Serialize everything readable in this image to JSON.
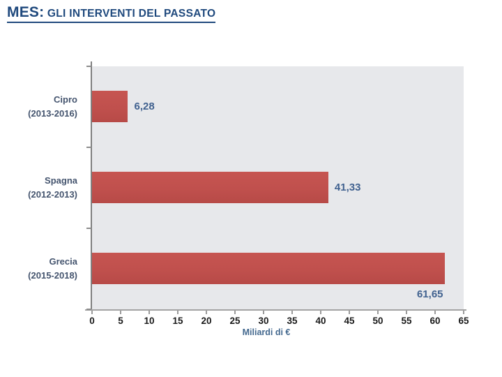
{
  "page": {
    "title_prefix": "MES:",
    "title_rest": " GLI INTERVENTI DEL PASSATO"
  },
  "chart_data": {
    "type": "bar",
    "orientation": "horizontal",
    "categories": [
      "Cipro",
      "Spagna",
      "Grecia"
    ],
    "category_periods": [
      "(2013-2016)",
      "(2012-2013)",
      "(2015-2018)"
    ],
    "values": [
      6.28,
      41.33,
      61.65
    ],
    "value_labels": [
      "6,28",
      "41,33",
      "61,65"
    ],
    "value_label_positions": [
      "right",
      "right",
      "below-end"
    ],
    "title": "",
    "xlabel": "Miliardi di €",
    "ylabel": "",
    "xlim": [
      0,
      65
    ],
    "x_ticks": [
      0,
      5,
      10,
      15,
      20,
      25,
      30,
      35,
      40,
      45,
      50,
      55,
      60,
      65
    ],
    "grid": false,
    "legend": false,
    "colors": {
      "bar": "#C0504D",
      "plot_background": "#E7E8EB",
      "axis_line": "#8C8C8C",
      "tick_label": "#1A1A1A",
      "value_label": "#40618F",
      "category_label": "#44546E",
      "title": "#1F497D",
      "xlabel": "#44698F"
    }
  }
}
